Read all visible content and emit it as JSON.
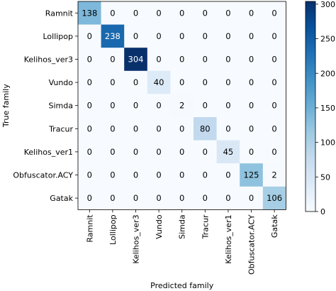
{
  "chart_data": {
    "type": "heatmap",
    "title": "",
    "xlabel": "Predicted family",
    "ylabel": "True family",
    "row_labels": [
      "Ramnit",
      "Lollipop",
      "Kelihos_ver3",
      "Vundo",
      "Simda",
      "Tracur",
      "Kelihos_ver1",
      "Obfuscator.ACY",
      "Gatak"
    ],
    "col_labels": [
      "Ramnit",
      "Lollipop",
      "Kelihos_ver3",
      "Vundo",
      "Simda",
      "Tracur",
      "Kelihos_ver1",
      "Obfuscator.ACY",
      "Gatak"
    ],
    "values": [
      [
        138,
        0,
        0,
        0,
        0,
        0,
        0,
        0,
        0
      ],
      [
        0,
        238,
        0,
        0,
        0,
        0,
        0,
        0,
        0
      ],
      [
        0,
        0,
        304,
        0,
        0,
        0,
        0,
        0,
        0
      ],
      [
        0,
        0,
        0,
        40,
        0,
        0,
        0,
        0,
        0
      ],
      [
        0,
        0,
        0,
        0,
        2,
        0,
        0,
        0,
        0
      ],
      [
        0,
        0,
        0,
        0,
        0,
        80,
        0,
        0,
        0
      ],
      [
        0,
        0,
        0,
        0,
        0,
        0,
        45,
        0,
        0
      ],
      [
        0,
        0,
        0,
        0,
        0,
        0,
        0,
        125,
        2
      ],
      [
        0,
        0,
        0,
        0,
        0,
        0,
        0,
        0,
        106
      ]
    ],
    "colormap": "Blues",
    "colorbar": {
      "range": [
        0,
        304
      ],
      "ticks": [
        0,
        50,
        100,
        150,
        200,
        250,
        300
      ],
      "tick_labels": [
        "0",
        "50",
        "100",
        "150",
        "200",
        "250",
        "300"
      ]
    }
  }
}
